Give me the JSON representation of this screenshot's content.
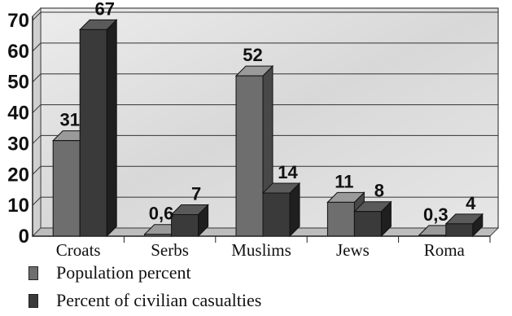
{
  "chart_data": {
    "type": "bar",
    "categories": [
      "Croats",
      "Serbs",
      "Muslims",
      "Jews",
      "Roma"
    ],
    "series": [
      {
        "name": "Population percent",
        "values": [
          31,
          0.6,
          52,
          11,
          0.3
        ],
        "labels": [
          "31",
          "0,6",
          "52",
          "11",
          "0,3"
        ],
        "color": "#6e6e6e"
      },
      {
        "name": "Percent of civilian casualties",
        "values": [
          67,
          7,
          14,
          8,
          4
        ],
        "labels": [
          "67",
          "7",
          "14",
          "8",
          "4"
        ],
        "color": "#3a3a3a"
      }
    ],
    "y_ticks": [
      "0",
      "10",
      "20",
      "30",
      "40",
      "50",
      "60",
      "70"
    ],
    "ylim": [
      0,
      70
    ],
    "title": "",
    "xlabel": "",
    "ylabel": "",
    "grid": true,
    "legend_position": "bottom-left"
  }
}
